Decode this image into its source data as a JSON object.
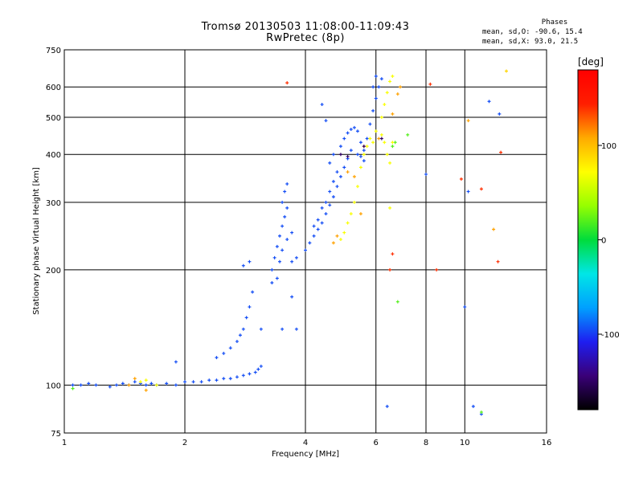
{
  "chart_data": {
    "type": "scatter",
    "title": "Tromsø 20130503 11:08:00-11:09:43",
    "subtitle": "RwPretec (8p)",
    "xlabel": "Frequency [MHz]",
    "ylabel": "Stationary phase Virtual Height [km]",
    "x_scale": "log",
    "y_scale": "log",
    "xlim": [
      1,
      16
    ],
    "ylim": [
      75,
      750
    ],
    "x_ticks": [
      1,
      2,
      4,
      6,
      8,
      10,
      16
    ],
    "y_ticks": [
      75,
      100,
      200,
      300,
      400,
      500,
      600,
      750
    ],
    "grid": true,
    "stats": {
      "heading": "Phases",
      "line1": "mean, sd,O: -90.6, 15.4",
      "line2": "mean, sd,X:  93.0, 21.5"
    },
    "colorbar": {
      "label": "[deg]",
      "ticks": [
        100,
        0,
        -100
      ],
      "range": [
        -180,
        180
      ],
      "palette": [
        "#000000",
        "#3a0078",
        "#1e1ef0",
        "#00a0ff",
        "#00e6e6",
        "#00dc3c",
        "#96ff00",
        "#ffff00",
        "#ffaa00",
        "#ff1e00",
        "#ff0000"
      ]
    },
    "series": [
      {
        "phase": -95,
        "points": [
          [
            1.05,
            100
          ],
          [
            1.1,
            100
          ],
          [
            1.15,
            101
          ],
          [
            1.2,
            100
          ],
          [
            1.3,
            99
          ],
          [
            1.35,
            100
          ],
          [
            1.4,
            101
          ],
          [
            1.45,
            100
          ],
          [
            1.5,
            102
          ],
          [
            1.55,
            101
          ],
          [
            1.6,
            100
          ],
          [
            1.65,
            101
          ],
          [
            1.7,
            100
          ],
          [
            1.8,
            101
          ],
          [
            1.9,
            100
          ],
          [
            2.0,
            102
          ],
          [
            2.1,
            102
          ],
          [
            2.2,
            102
          ],
          [
            2.3,
            103
          ],
          [
            2.4,
            103
          ],
          [
            2.5,
            104
          ],
          [
            2.6,
            104
          ],
          [
            2.7,
            105
          ],
          [
            2.8,
            106
          ],
          [
            2.9,
            107
          ],
          [
            3.0,
            108
          ],
          [
            3.05,
            110
          ],
          [
            3.1,
            112
          ],
          [
            2.4,
            118
          ],
          [
            2.5,
            121
          ],
          [
            2.6,
            125
          ],
          [
            2.7,
            130
          ],
          [
            2.75,
            135
          ],
          [
            2.8,
            140
          ],
          [
            2.85,
            150
          ],
          [
            2.9,
            160
          ],
          [
            2.95,
            175
          ],
          [
            2.8,
            205
          ],
          [
            2.9,
            210
          ],
          [
            1.9,
            115
          ],
          [
            3.3,
            200
          ],
          [
            3.35,
            215
          ],
          [
            3.4,
            230
          ],
          [
            3.45,
            245
          ],
          [
            3.5,
            260
          ],
          [
            3.55,
            275
          ],
          [
            3.6,
            290
          ],
          [
            3.5,
            300
          ],
          [
            3.55,
            320
          ],
          [
            3.6,
            335
          ],
          [
            3.45,
            210
          ],
          [
            3.5,
            225
          ],
          [
            3.6,
            240
          ],
          [
            3.7,
            250
          ],
          [
            3.7,
            210
          ],
          [
            3.8,
            215
          ],
          [
            3.4,
            190
          ],
          [
            3.3,
            185
          ],
          [
            4.0,
            225
          ],
          [
            4.1,
            235
          ],
          [
            4.2,
            245
          ],
          [
            4.3,
            255
          ],
          [
            4.4,
            265
          ],
          [
            4.5,
            280
          ],
          [
            4.6,
            295
          ],
          [
            4.7,
            310
          ],
          [
            4.8,
            330
          ],
          [
            4.9,
            350
          ],
          [
            5.0,
            370
          ],
          [
            4.2,
            260
          ],
          [
            4.3,
            270
          ],
          [
            4.4,
            290
          ],
          [
            4.5,
            300
          ],
          [
            4.6,
            320
          ],
          [
            4.7,
            340
          ],
          [
            4.8,
            360
          ],
          [
            5.1,
            390
          ],
          [
            5.2,
            410
          ],
          [
            4.9,
            420
          ],
          [
            5.0,
            440
          ],
          [
            5.1,
            455
          ],
          [
            5.2,
            465
          ],
          [
            5.3,
            470
          ],
          [
            5.4,
            460
          ],
          [
            5.5,
            430
          ],
          [
            5.6,
            410
          ],
          [
            5.7,
            440
          ],
          [
            5.8,
            480
          ],
          [
            5.9,
            520
          ],
          [
            6.0,
            560
          ],
          [
            6.1,
            600
          ],
          [
            6.2,
            630
          ],
          [
            5.9,
            600
          ],
          [
            6.0,
            640
          ],
          [
            5.5,
            395
          ],
          [
            5.6,
            385
          ],
          [
            5.4,
            400
          ],
          [
            4.6,
            380
          ],
          [
            4.7,
            400
          ],
          [
            3.7,
            170
          ],
          [
            4.4,
            540
          ],
          [
            4.5,
            490
          ],
          [
            3.8,
            140
          ],
          [
            3.5,
            140
          ],
          [
            3.1,
            140
          ],
          [
            10.2,
            320
          ],
          [
            11.5,
            550
          ],
          [
            12.2,
            510
          ],
          [
            10.5,
            88
          ],
          [
            11.0,
            84
          ],
          [
            6.4,
            88
          ],
          [
            8.0,
            355
          ],
          [
            10.0,
            160
          ]
        ]
      },
      {
        "phase": 20,
        "points": [
          [
            1.05,
            98
          ],
          [
            6.6,
            420
          ],
          [
            6.7,
            430
          ],
          [
            6.8,
            165
          ],
          [
            7.2,
            450
          ],
          [
            11.0,
            85
          ]
        ]
      },
      {
        "phase": 70,
        "points": [
          [
            1.55,
            102
          ],
          [
            1.6,
            103
          ],
          [
            1.7,
            100
          ],
          [
            4.9,
            240
          ],
          [
            5.0,
            250
          ],
          [
            5.1,
            265
          ],
          [
            5.2,
            280
          ],
          [
            5.3,
            300
          ],
          [
            5.4,
            330
          ],
          [
            5.5,
            370
          ],
          [
            5.6,
            400
          ],
          [
            5.7,
            420
          ],
          [
            5.8,
            440
          ],
          [
            6.0,
            460
          ],
          [
            6.2,
            500
          ],
          [
            6.3,
            540
          ],
          [
            6.4,
            580
          ],
          [
            6.5,
            620
          ],
          [
            6.6,
            640
          ],
          [
            6.3,
            430
          ],
          [
            6.4,
            400
          ],
          [
            6.5,
            380
          ],
          [
            6.6,
            430
          ],
          [
            6.5,
            290
          ],
          [
            6.2,
            450
          ],
          [
            5.9,
            430
          ]
        ]
      },
      {
        "phase": 110,
        "points": [
          [
            1.5,
            104
          ],
          [
            1.45,
            100
          ],
          [
            1.6,
            97
          ],
          [
            4.7,
            235
          ],
          [
            4.8,
            245
          ],
          [
            5.1,
            360
          ],
          [
            5.3,
            350
          ],
          [
            5.5,
            280
          ],
          [
            6.1,
            440
          ],
          [
            6.6,
            510
          ],
          [
            6.9,
            600
          ],
          [
            6.8,
            575
          ],
          [
            5.6,
            420
          ],
          [
            11.8,
            255
          ],
          [
            10.2,
            490
          ]
        ]
      },
      {
        "phase": 140,
        "points": [
          [
            3.6,
            615
          ],
          [
            8.2,
            610
          ],
          [
            9.8,
            345
          ],
          [
            11.0,
            325
          ],
          [
            12.1,
            210
          ],
          [
            8.5,
            200
          ],
          [
            12.3,
            405
          ],
          [
            6.6,
            220
          ],
          [
            6.5,
            200
          ]
        ]
      },
      {
        "phase": -150,
        "points": [
          [
            4.9,
            400
          ],
          [
            5.1,
            395
          ],
          [
            5.6,
            420
          ],
          [
            6.2,
            440
          ]
        ]
      },
      {
        "phase": 90,
        "points": [
          [
            12.7,
            660
          ]
        ]
      }
    ]
  }
}
